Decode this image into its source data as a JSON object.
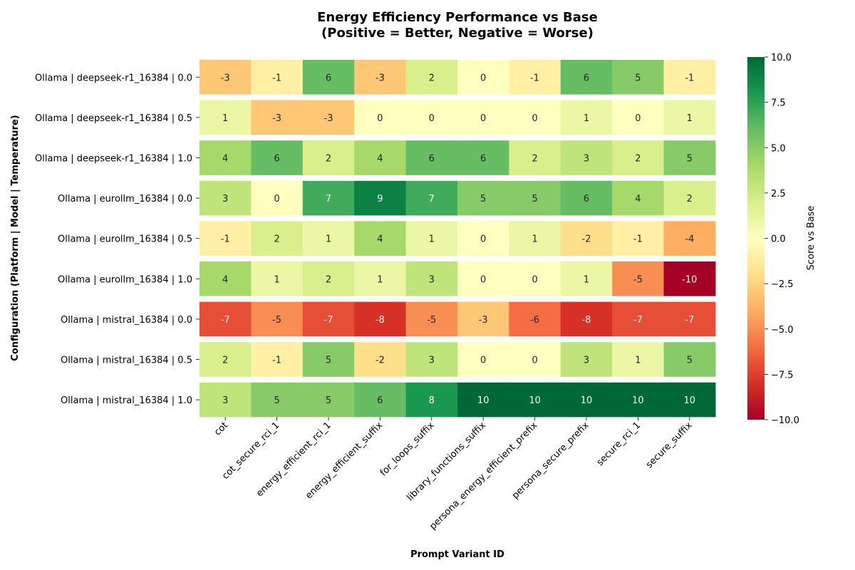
{
  "chart_data": {
    "type": "heatmap",
    "title_line1": "Energy Efficiency Performance vs Base",
    "title_line2": "(Positive = Better, Negative = Worse)",
    "xlabel": "Prompt Variant ID",
    "ylabel": "Configuration (Platform | Model | Temperature)",
    "colorbar_label": "Score vs Base",
    "colormap": "RdYlGn",
    "vmin": -10,
    "vmax": 10,
    "colorbar_ticks": [
      {
        "value": 10,
        "label": "10.0"
      },
      {
        "value": 7.5,
        "label": "7.5"
      },
      {
        "value": 5,
        "label": "5.0"
      },
      {
        "value": 2.5,
        "label": "2.5"
      },
      {
        "value": 0,
        "label": "0.0"
      },
      {
        "value": -2.5,
        "label": "−2.5"
      },
      {
        "value": -5,
        "label": "−5.0"
      },
      {
        "value": -7.5,
        "label": "−7.5"
      },
      {
        "value": -10,
        "label": "−10.0"
      }
    ],
    "columns": [
      "cot",
      "cot_secure_rci_1",
      "energy_efficient_rci_1",
      "energy_efficient_suffix",
      "for_loops_suffix",
      "library_functions_suffix",
      "persona_energy_efficient_prefix",
      "persona_secure_prefix",
      "secure_rci_1",
      "secure_suffix"
    ],
    "rows": [
      "Ollama | deepseek-r1_16384 | 0.0",
      "Ollama | deepseek-r1_16384 | 0.5",
      "Ollama | deepseek-r1_16384 | 1.0",
      "Ollama | eurollm_16384 | 0.0",
      "Ollama | eurollm_16384 | 0.5",
      "Ollama | eurollm_16384 | 1.0",
      "Ollama | mistral_16384 | 0.0",
      "Ollama | mistral_16384 | 0.5",
      "Ollama | mistral_16384 | 1.0"
    ],
    "values": [
      [
        -3,
        -1,
        6,
        -3,
        2,
        0,
        -1,
        6,
        5,
        -1
      ],
      [
        1,
        -3,
        -3,
        0,
        0,
        0,
        0,
        1,
        0,
        1
      ],
      [
        4,
        6,
        2,
        4,
        6,
        6,
        2,
        3,
        2,
        5
      ],
      [
        3,
        0,
        7,
        9,
        7,
        5,
        5,
        6,
        4,
        2
      ],
      [
        -1,
        2,
        1,
        4,
        1,
        0,
        1,
        -2,
        -1,
        -4
      ],
      [
        4,
        1,
        2,
        1,
        3,
        0,
        0,
        1,
        -5,
        -10
      ],
      [
        -7,
        -5,
        -7,
        -8,
        -5,
        -3,
        -6,
        -8,
        -7,
        -7
      ],
      [
        2,
        -1,
        5,
        -2,
        3,
        0,
        0,
        3,
        1,
        5
      ],
      [
        3,
        5,
        5,
        6,
        8,
        10,
        10,
        10,
        10,
        10
      ]
    ]
  }
}
